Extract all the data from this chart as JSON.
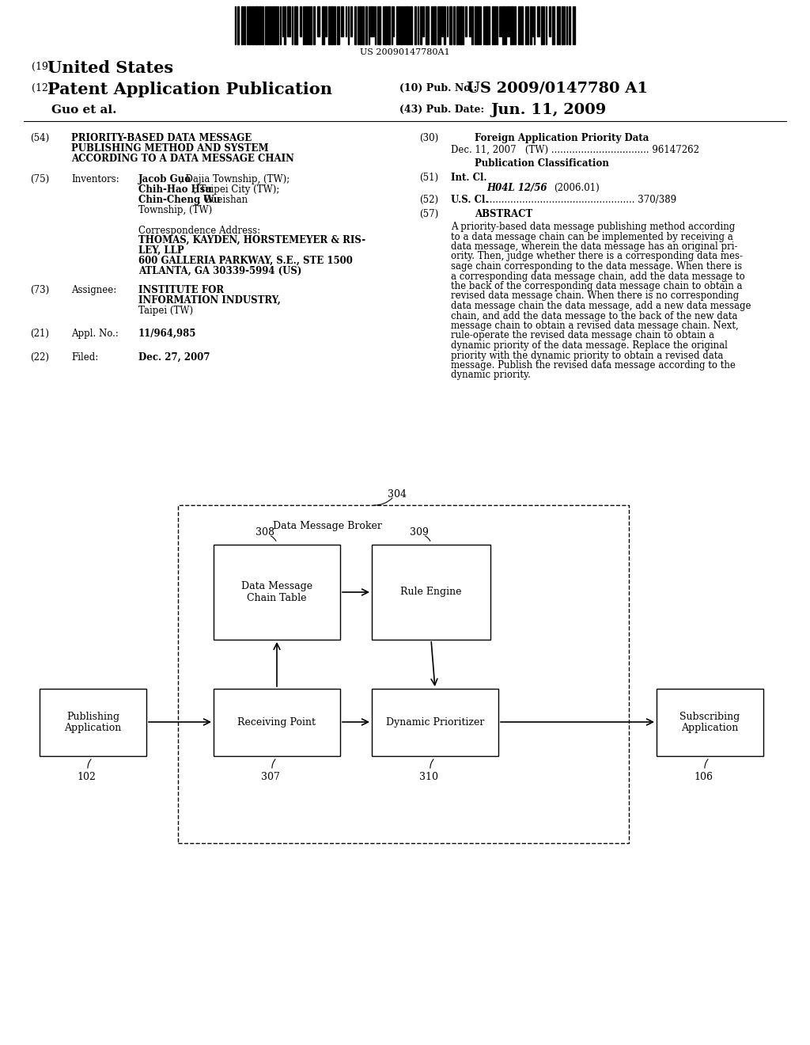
{
  "bg_color": "#ffffff",
  "barcode_text": "US 20090147780A1",
  "header_19": "(19)",
  "header_19_val": "United States",
  "header_12": "(12)",
  "header_12_val": "Patent Application Publication",
  "header_inventor": "Guo et al.",
  "header_pub_no_label": "(10) Pub. No.:",
  "header_pub_no": "US 2009/0147780 A1",
  "header_pub_date_label": "(43) Pub. Date:",
  "header_pub_date": "Jun. 11, 2009",
  "f54_label": "(54)",
  "f54_lines": [
    "PRIORITY-BASED DATA MESSAGE",
    "PUBLISHING METHOD AND SYSTEM",
    "ACCORDING TO A DATA MESSAGE CHAIN"
  ],
  "f75_label": "(75)",
  "f75_name": "Inventors:",
  "f75_inv1_bold": "Jacob Guo",
  "f75_inv1_rest": ", Dajia Township, (TW);",
  "f75_inv2_bold": "Chih-Hao Hsu",
  "f75_inv2_rest": ", Taipei City (TW);",
  "f75_inv3_bold": "Chin-Cheng Wu",
  "f75_inv3_rest": ", Gueishan",
  "f75_inv4": "Township, (TW)",
  "corr_label": "Correspondence Address:",
  "corr_line1": "THOMAS, KAYDEN, HORSTEMEYER & RIS-",
  "corr_line2": "LEY, LLP",
  "corr_line3": "600 GALLERIA PARKWAY, S.E., STE 1500",
  "corr_line4": "ATLANTA, GA 30339-5994 (US)",
  "f73_label": "(73)",
  "f73_name": "Assignee:",
  "f73_line1": "INSTITUTE FOR",
  "f73_line2": "INFORMATION INDUSTRY,",
  "f73_line3": "Taipei (TW)",
  "f21_label": "(21)",
  "f21_name": "Appl. No.:",
  "f21_val": "11/964,985",
  "f22_label": "(22)",
  "f22_name": "Filed:",
  "f22_val": "Dec. 27, 2007",
  "f30_label": "(30)",
  "f30_title": "Foreign Application Priority Data",
  "f30_text": "Dec. 11, 2007   (TW) ................................. 96147262",
  "pub_class_title": "Publication Classification",
  "f51_label": "(51)",
  "f51_name": "Int. Cl.",
  "f51_class": "H04L 12/56",
  "f51_year": "(2006.01)",
  "f52_label": "(52)",
  "f52_name": "U.S. Cl.",
  "f52_dots": ".................................................. 370/389",
  "f57_label": "(57)",
  "f57_title": "ABSTRACT",
  "abstract_lines": [
    "A priority-based data message publishing method according",
    "to a data message chain can be implemented by receiving a",
    "data message, wherein the data message has an original pri-",
    "ority. Then, judge whether there is a corresponding data mes-",
    "sage chain corresponding to the data message. When there is",
    "a corresponding data message chain, add the data message to",
    "the back of the corresponding data message chain to obtain a",
    "revised data message chain. When there is no corresponding",
    "data message chain the data message, add a new data message",
    "chain, and add the data message to the back of the new data",
    "message chain to obtain a revised data message chain. Next,",
    "rule-operate the revised data message chain to obtain a",
    "dynamic priority of the data message. Replace the original",
    "priority with the dynamic priority to obtain a revised data",
    "message. Publish the revised data message according to the",
    "dynamic priority."
  ],
  "diag_304": "304",
  "diag_broker": "Data Message Broker",
  "diag_308": "308",
  "diag_309": "309",
  "diag_box308": "Data Message\nChain Table",
  "diag_box309": "Rule Engine",
  "diag_102": "102",
  "diag_box102": "Publishing\nApplication",
  "diag_307": "307",
  "diag_box307": "Receiving Point",
  "diag_310": "310",
  "diag_box310": "Dynamic Prioritizer",
  "diag_106": "106",
  "diag_box106": "Subscribing\nApplication"
}
